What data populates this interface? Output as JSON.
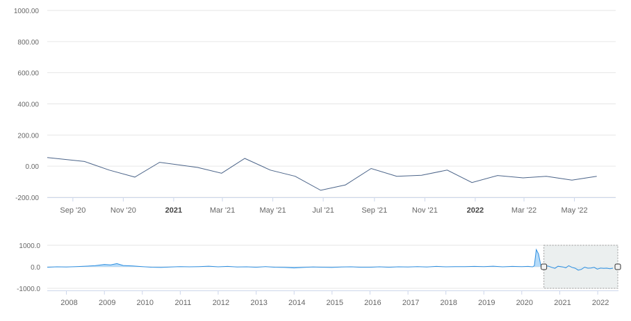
{
  "colors": {
    "main_line": "#4a6388",
    "nav_line": "#2f8fe0",
    "nav_fill": "#9fd0f7",
    "grid": "#e6e6e6",
    "axis": "#ccd6eb",
    "mask_fill": "#e8ecec",
    "mask_border": "#999999"
  },
  "chart_data": [
    {
      "type": "line",
      "title": "",
      "xlabel": "",
      "ylabel": "",
      "ylim": [
        -200,
        1000
      ],
      "yticks": [
        "1000.00",
        "800.00",
        "600.00",
        "400.00",
        "200.00",
        "0.00",
        "-200.00"
      ],
      "ytick_values": [
        1000,
        800,
        600,
        400,
        200,
        0,
        -200
      ],
      "xlim": [
        "2020-08-01",
        "2022-06-20"
      ],
      "xticks": [
        {
          "date": "2020-09-01",
          "label": "Sep '20",
          "bold": false
        },
        {
          "date": "2020-11-01",
          "label": "Nov '20",
          "bold": false
        },
        {
          "date": "2021-01-01",
          "label": "2021",
          "bold": true
        },
        {
          "date": "2021-03-01",
          "label": "Mar '21",
          "bold": false
        },
        {
          "date": "2021-05-01",
          "label": "May '21",
          "bold": false
        },
        {
          "date": "2021-07-01",
          "label": "Jul '21",
          "bold": false
        },
        {
          "date": "2021-09-01",
          "label": "Sep '21",
          "bold": false
        },
        {
          "date": "2021-11-01",
          "label": "Nov '21",
          "bold": false
        },
        {
          "date": "2022-01-01",
          "label": "2022",
          "bold": true
        },
        {
          "date": "2022-03-01",
          "label": "Mar '22",
          "bold": false
        },
        {
          "date": "2022-05-01",
          "label": "May '22",
          "bold": false
        }
      ],
      "series": [
        {
          "x": [
            "2020-08-01",
            "2020-09-15",
            "2020-10-15",
            "2020-11-15",
            "2020-12-15",
            "2021-01-30",
            "2021-02-28",
            "2021-03-28",
            "2021-04-28",
            "2021-05-28",
            "2021-06-28",
            "2021-07-28",
            "2021-08-28",
            "2021-09-28",
            "2021-10-28",
            "2021-11-28",
            "2021-12-28",
            "2022-01-28",
            "2022-02-28",
            "2022-03-28",
            "2022-04-28",
            "2022-05-28"
          ],
          "y": [
            55,
            30,
            -25,
            -70,
            25,
            -8,
            -45,
            50,
            -25,
            -65,
            -155,
            -120,
            -15,
            -65,
            -58,
            -25,
            -105,
            -60,
            -75,
            -65,
            -90,
            -65
          ]
        }
      ]
    },
    {
      "type": "area",
      "title": "",
      "ylim": [
        -1000,
        1000
      ],
      "yticks": [
        "1000.0",
        "0.0",
        "-1000.0"
      ],
      "ytick_values": [
        1000,
        0,
        -1000
      ],
      "xlim": [
        "2007-07-01",
        "2022-07-20"
      ],
      "xticks": [
        "2008",
        "2009",
        "2010",
        "2011",
        "2012",
        "2013",
        "2014",
        "2015",
        "2016",
        "2017",
        "2018",
        "2019",
        "2020",
        "2021",
        "2022"
      ],
      "series": [
        {
          "x": [
            "2007-07-01",
            "2007-10-01",
            "2008-01-01",
            "2008-04-01",
            "2008-07-01",
            "2008-10-01",
            "2009-01-01",
            "2009-03-01",
            "2009-05-01",
            "2009-07-01",
            "2009-10-01",
            "2010-01-01",
            "2010-04-01",
            "2010-07-01",
            "2010-10-01",
            "2011-01-01",
            "2011-04-01",
            "2011-07-01",
            "2011-10-01",
            "2012-01-01",
            "2012-04-01",
            "2012-07-01",
            "2012-10-01",
            "2013-01-01",
            "2013-04-01",
            "2013-07-01",
            "2013-10-01",
            "2014-01-01",
            "2014-04-01",
            "2014-07-01",
            "2014-10-01",
            "2015-01-01",
            "2015-04-01",
            "2015-07-01",
            "2015-10-01",
            "2016-01-01",
            "2016-04-01",
            "2016-07-01",
            "2016-10-01",
            "2017-01-01",
            "2017-04-01",
            "2017-07-01",
            "2017-10-01",
            "2018-01-01",
            "2018-04-01",
            "2018-07-01",
            "2018-10-01",
            "2019-01-01",
            "2019-04-01",
            "2019-07-01",
            "2019-10-01",
            "2020-01-01",
            "2020-03-01",
            "2020-04-15",
            "2020-05-01",
            "2020-05-20",
            "2020-06-10",
            "2020-07-01",
            "2020-08-01",
            "2020-09-15",
            "2020-10-15",
            "2020-11-15",
            "2020-12-15",
            "2021-01-30",
            "2021-02-28",
            "2021-03-28",
            "2021-04-28",
            "2021-05-28",
            "2021-06-28",
            "2021-07-28",
            "2021-08-28",
            "2021-09-28",
            "2021-10-28",
            "2021-11-28",
            "2021-12-28",
            "2022-01-28",
            "2022-02-28",
            "2022-03-28",
            "2022-04-28",
            "2022-05-28"
          ],
          "y": [
            -20,
            0,
            -10,
            10,
            30,
            50,
            110,
            90,
            150,
            60,
            40,
            10,
            -20,
            -30,
            -10,
            10,
            0,
            10,
            30,
            0,
            20,
            -10,
            0,
            -20,
            10,
            -20,
            -30,
            -50,
            -30,
            -10,
            -20,
            -30,
            -10,
            0,
            -20,
            -20,
            0,
            -20,
            0,
            -10,
            10,
            -10,
            20,
            0,
            10,
            10,
            20,
            10,
            30,
            0,
            20,
            10,
            20,
            0,
            50,
            800,
            600,
            100,
            55,
            30,
            -25,
            -70,
            25,
            -8,
            -45,
            50,
            -25,
            -65,
            -155,
            -120,
            -15,
            -65,
            -58,
            -25,
            -105,
            -60,
            -75,
            -65,
            -90,
            -65
          ]
        }
      ],
      "selected_range": [
        "2020-08-01",
        "2022-07-20"
      ]
    }
  ]
}
